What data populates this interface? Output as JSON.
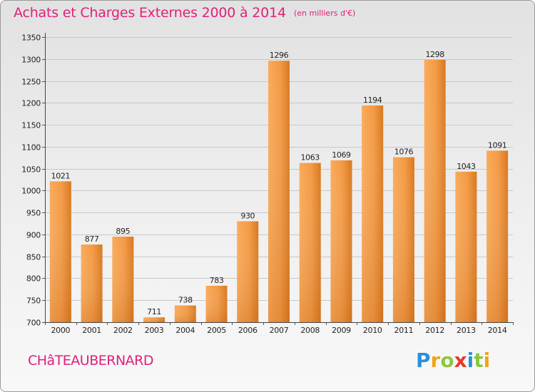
{
  "header": {
    "title": "Achats et Charges Externes 2000 à 2014",
    "unit": "(en milliers d'€)"
  },
  "footer": {
    "commune": "CHâTEAUBERNARD",
    "brand": [
      {
        "char": "P",
        "color": "#2e8fd8"
      },
      {
        "char": "r",
        "color": "#f2a21a"
      },
      {
        "char": "o",
        "color": "#8cc63f"
      },
      {
        "char": "x",
        "color": "#e53a2a"
      },
      {
        "char": "i",
        "color": "#2e8fd8"
      },
      {
        "char": "t",
        "color": "#8cc63f"
      },
      {
        "char": "i",
        "color": "#f2a21a"
      }
    ]
  },
  "colors": {
    "accent": "#e0207a",
    "bar_light": "#f9ab5a",
    "bar_dark": "#d8781e",
    "grid": "#c8c8c8",
    "axis_text": "#222222"
  },
  "chart_data": {
    "type": "bar",
    "categories": [
      "2000",
      "2001",
      "2002",
      "2003",
      "2004",
      "2005",
      "2006",
      "2007",
      "2008",
      "2009",
      "2010",
      "2011",
      "2012",
      "2013",
      "2014"
    ],
    "values": [
      1021,
      877,
      895,
      711,
      738,
      783,
      930,
      1296,
      1063,
      1069,
      1194,
      1076,
      1298,
      1043,
      1091
    ],
    "ylim": [
      700,
      1350
    ],
    "yticks": [
      700,
      750,
      800,
      850,
      900,
      950,
      1000,
      1050,
      1100,
      1150,
      1200,
      1250,
      1300,
      1350
    ],
    "grid": true,
    "data_labels": true
  }
}
